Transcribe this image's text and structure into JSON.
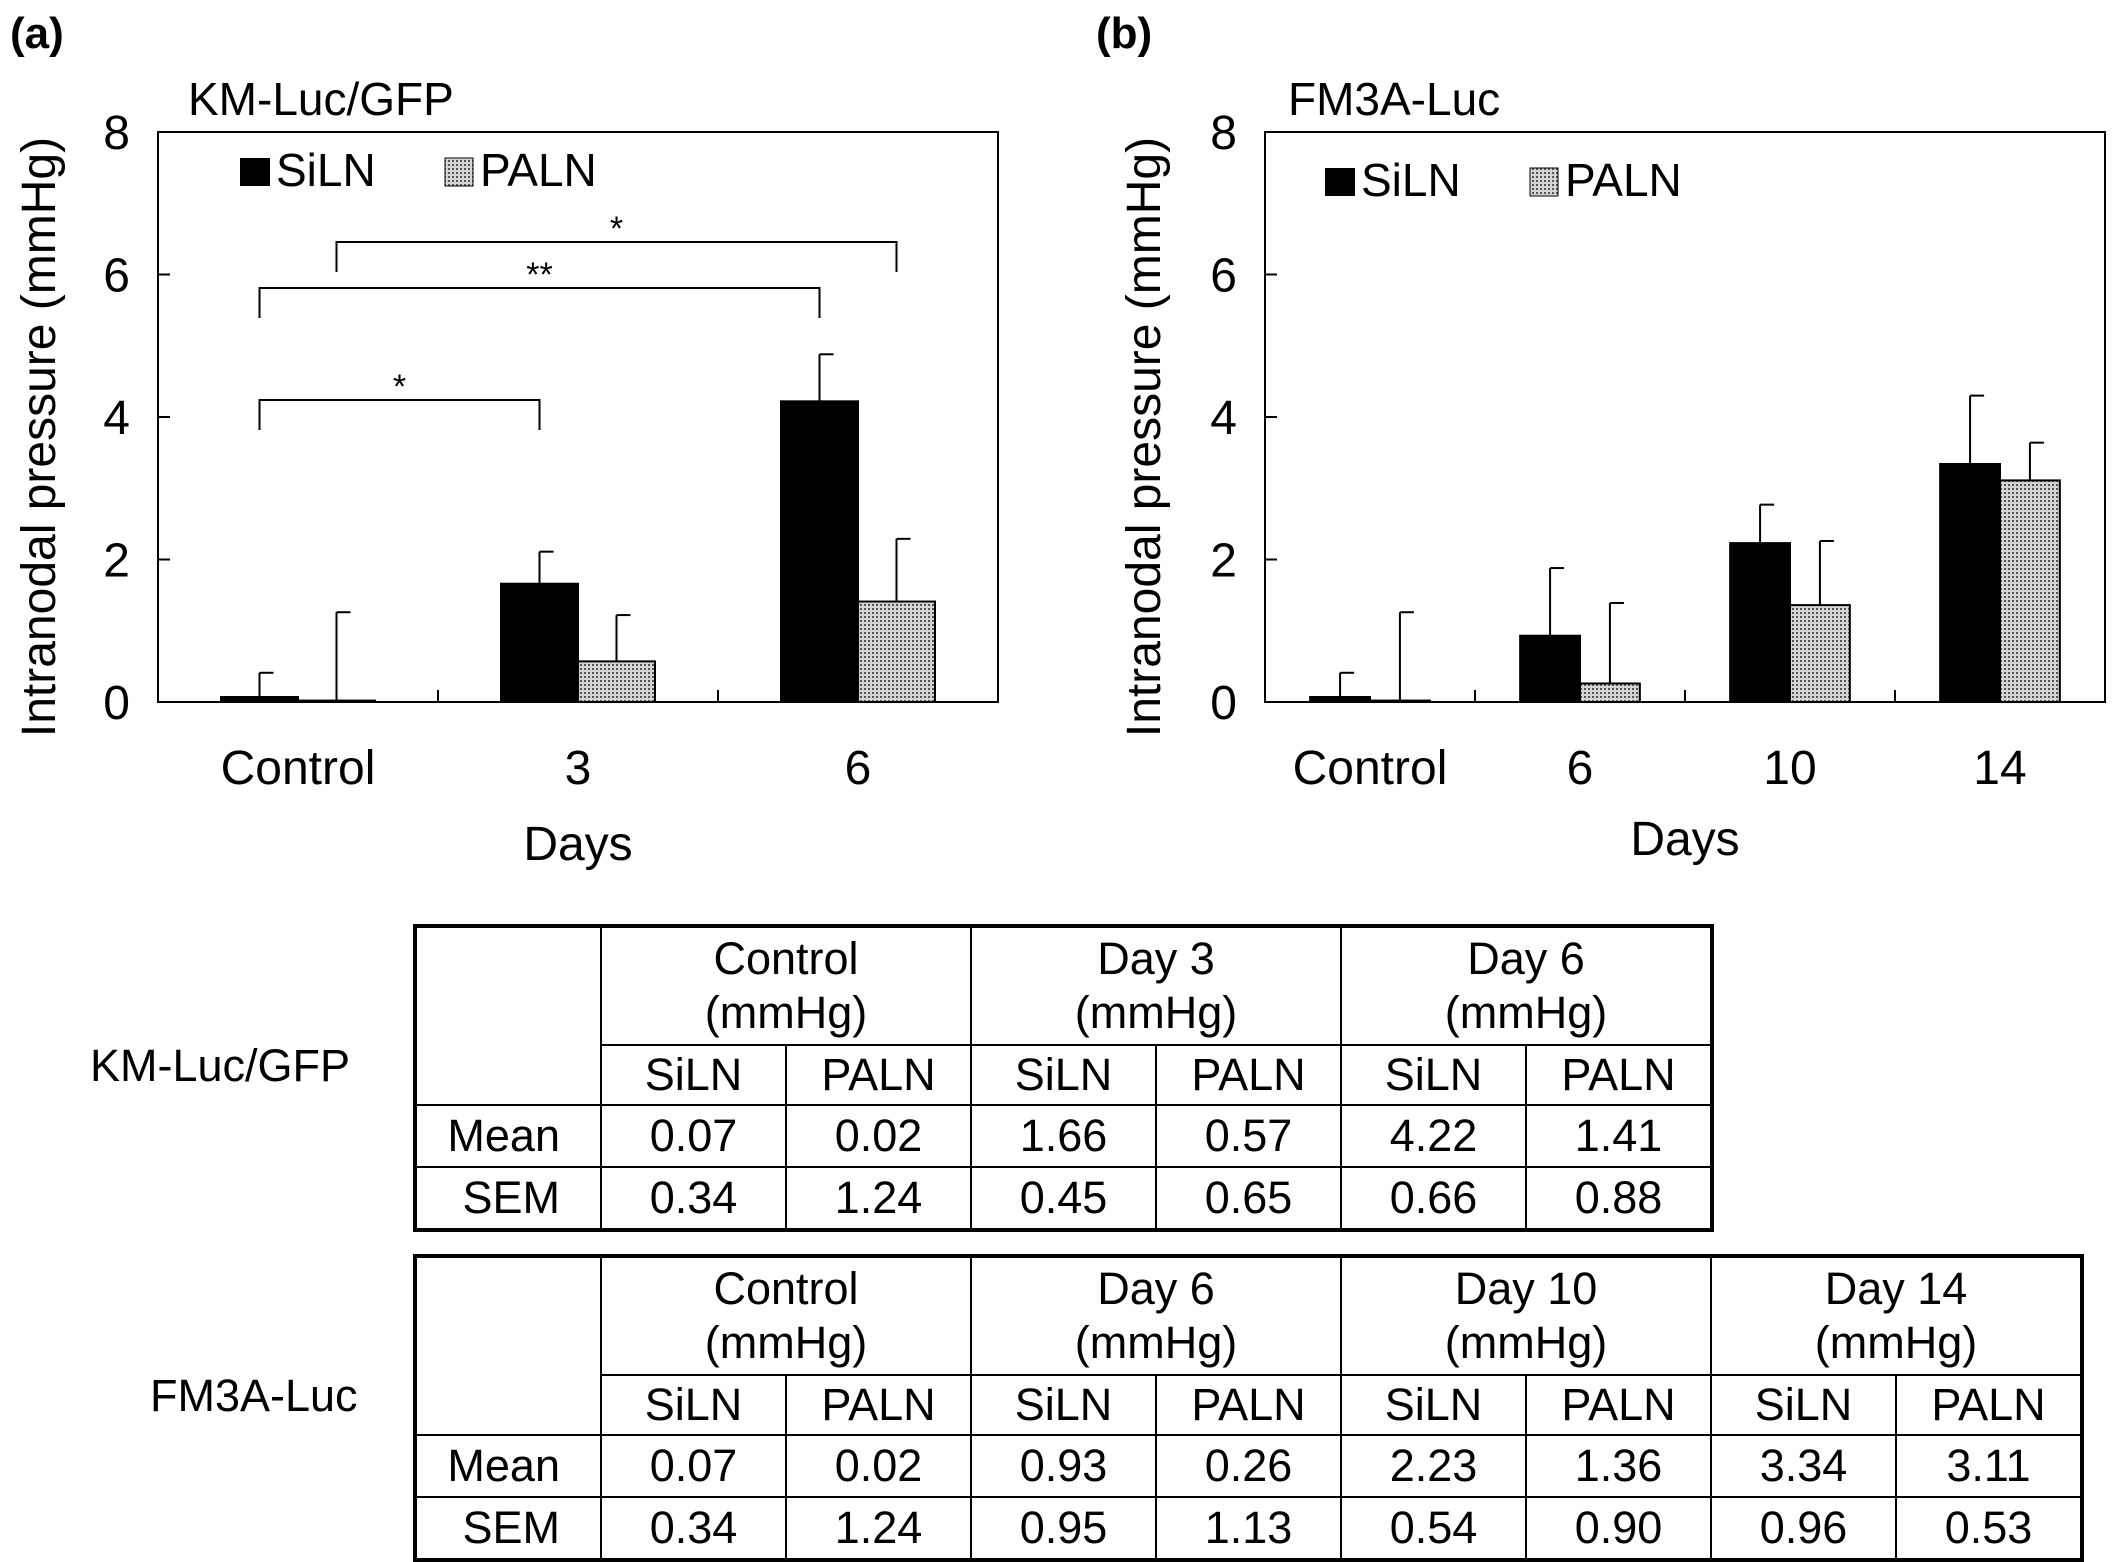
{
  "panels": [
    {
      "label": "(a)",
      "title": "KM-Luc/GFP"
    },
    {
      "label": "(b)",
      "title": "FM3A-Luc"
    }
  ],
  "chart_data": [
    {
      "type": "bar",
      "panel": "(a)",
      "title": "KM-Luc/GFP",
      "xlabel": "Days",
      "ylabel": "Intranodal pressure (mmHg)",
      "ylim": [
        0,
        8
      ],
      "yticks": [
        "0",
        "2",
        "4",
        "6",
        "8"
      ],
      "categories": [
        "Control",
        "3",
        "6"
      ],
      "legend_position": "top-left",
      "series": [
        {
          "name": "SiLN",
          "color": "#000000",
          "values": [
            0.07,
            1.66,
            4.22
          ],
          "errors": [
            0.34,
            0.45,
            0.66
          ]
        },
        {
          "name": "PALN",
          "pattern": "dotted-gray",
          "values": [
            0.02,
            0.57,
            1.41
          ],
          "errors": [
            1.24,
            0.65,
            0.88
          ]
        }
      ],
      "significance": [
        {
          "label": "*",
          "from": "Control SiLN",
          "to": "Day 3 SiLN"
        },
        {
          "label": "**",
          "from": "Control SiLN",
          "to": "Day 6 SiLN"
        },
        {
          "label": "*",
          "from": "Control PALN",
          "to": "Day 6 PALN"
        }
      ]
    },
    {
      "type": "bar",
      "panel": "(b)",
      "title": "FM3A-Luc",
      "xlabel": "Days",
      "ylabel": "Intranodal pressure (mmHg)",
      "ylim": [
        0,
        8
      ],
      "yticks": [
        "0",
        "2",
        "4",
        "6",
        "8"
      ],
      "categories": [
        "Control",
        "6",
        "10",
        "14"
      ],
      "legend_position": "top-left",
      "series": [
        {
          "name": "SiLN",
          "color": "#000000",
          "values": [
            0.07,
            0.93,
            2.23,
            3.34
          ],
          "errors": [
            0.34,
            0.95,
            0.54,
            0.96
          ]
        },
        {
          "name": "PALN",
          "pattern": "dotted-gray",
          "values": [
            0.02,
            0.26,
            1.36,
            3.11
          ],
          "errors": [
            1.24,
            1.13,
            0.9,
            0.53
          ]
        }
      ],
      "significance": []
    }
  ],
  "tables": [
    {
      "row_label": "KM-Luc/GFP",
      "groups": [
        {
          "name": "Control",
          "unit": "(mmHg)"
        },
        {
          "name": "Day 3",
          "unit": "(mmHg)"
        },
        {
          "name": "Day 6",
          "unit": "(mmHg)"
        }
      ],
      "subheaders": [
        "SiLN",
        "PALN"
      ],
      "rows": [
        {
          "label": "Mean",
          "values": [
            "0.07",
            "0.02",
            "1.66",
            "0.57",
            "4.22",
            "1.41"
          ]
        },
        {
          "label": "SEM",
          "values": [
            "0.34",
            "1.24",
            "0.45",
            "0.65",
            "0.66",
            "0.88"
          ]
        }
      ]
    },
    {
      "row_label": "FM3A-Luc",
      "groups": [
        {
          "name": "Control",
          "unit": "(mmHg)"
        },
        {
          "name": "Day 6",
          "unit": "(mmHg)"
        },
        {
          "name": "Day 10",
          "unit": "(mmHg)"
        },
        {
          "name": "Day 14",
          "unit": "(mmHg)"
        }
      ],
      "subheaders": [
        "SiLN",
        "PALN"
      ],
      "rows": [
        {
          "label": "Mean",
          "values": [
            "0.07",
            "0.02",
            "0.93",
            "0.26",
            "2.23",
            "1.36",
            "3.34",
            "3.11"
          ]
        },
        {
          "label": "SEM",
          "values": [
            "0.34",
            "1.24",
            "0.95",
            "1.13",
            "0.54",
            "0.90",
            "0.96",
            "0.53"
          ]
        }
      ]
    }
  ]
}
